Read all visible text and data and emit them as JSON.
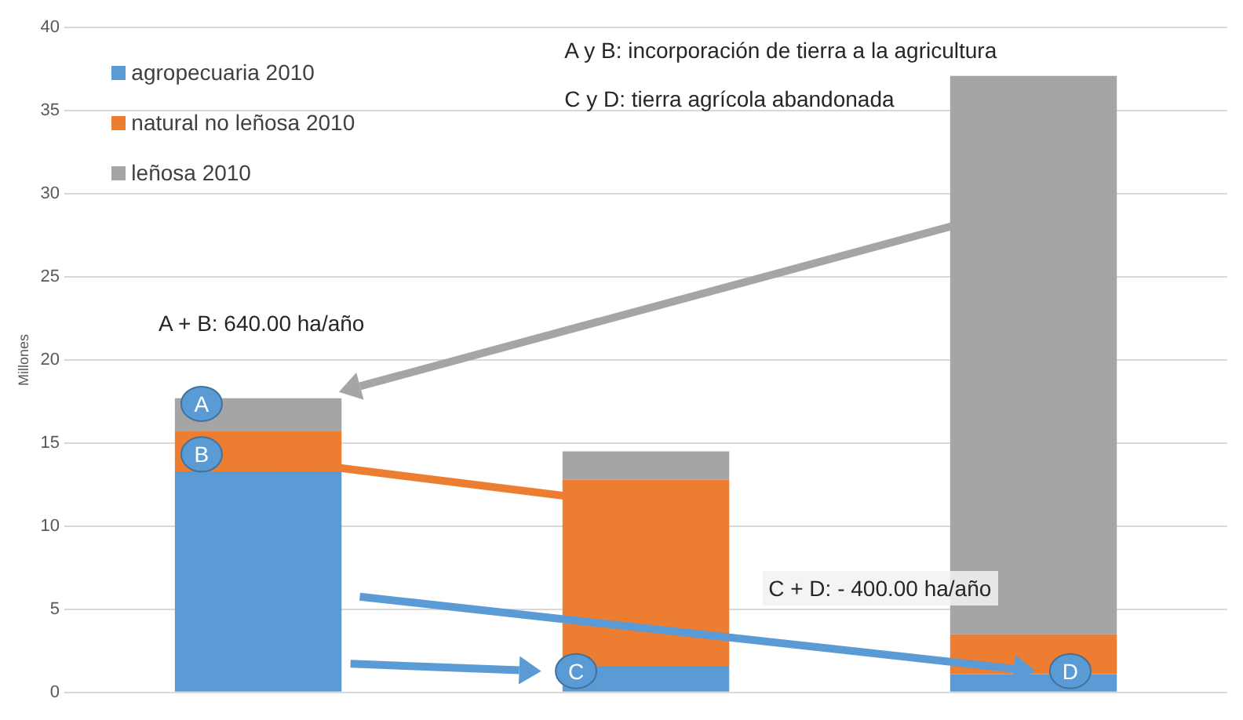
{
  "chart_data": {
    "type": "bar",
    "stacked": true,
    "ylabel": "Millones",
    "categories": [
      null,
      null,
      null
    ],
    "series": [
      {
        "name": "agropecuaria 2010",
        "color": "#5b9bd5",
        "values": [
          13.3,
          1.6,
          1.1
        ]
      },
      {
        "name": "natural no leñosa 2010",
        "color": "#ed7d31",
        "values": [
          2.4,
          11.2,
          2.4
        ]
      },
      {
        "name": "leñosa 2010",
        "color": "#a5a5a5",
        "values": [
          2.0,
          1.7,
          33.6
        ]
      }
    ],
    "ylim": [
      0,
      40
    ],
    "yticks": [
      0,
      5,
      10,
      15,
      20,
      25,
      30,
      35,
      40
    ],
    "grid": "y",
    "legend": "top left",
    "annotations": [
      "A y B: incorporación de tierra a la agricultura",
      "C y D: tierra agrícola abandonada",
      "A + B: 640.00 ha/año",
      "C + D: - 400.00 ha/año",
      "A",
      "B",
      "C",
      "D"
    ]
  }
}
